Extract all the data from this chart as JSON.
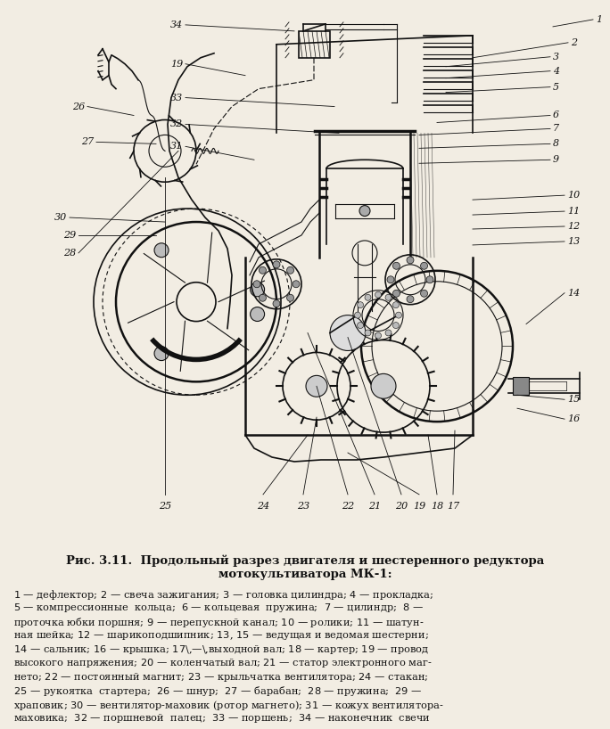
{
  "title": "Рис. 3.11. Продольный разрез двигателя и шестеренного редуктора\n мотокультиватора МК-1:",
  "legend_lines": [
    "1 — дефлектор; 2 — свеча зажигания; 3 — головка цилиндра; 4 — прокладка;",
    "5 — компрессионные  кольца;  6 — кольцевая  пружина;  7 — цилиндр;  8 —",
    "проточка юбки поршня; 9 — перепускной канал; 10 — ролики; 11 — шатун-",
    "ная шейка; 12 — шарикоподшипник; 13, 15 — ведущая и ведомая шестерни;",
    "14 — сальник; 16 — крышка; 17 — выходной вал; 18 — картер; 19 — провод",
    "высокого напряжения; 20 — коленчатый вал; 21 — статор электронного маг-",
    "нето; 22 — постоянный магнит; 23 — крыльчатка вентилятора; 24 — стакан;",
    "25 — рукоятка  стартера;  26 — шнур;  27 — барабан;  28 — пружина;  29 —",
    "храповик; 30 — вентилятор-маховик (ротор магнето); 31 — кожух вентилятора-",
    "маховика;  32 — поршневой  палец;  33 — поршень;  34 — наконечник  свечи"
  ],
  "bg_color": "#f2ede3",
  "text_color": "#1a1a1a",
  "figsize": [
    6.84,
    8.18
  ],
  "dpi": 100
}
